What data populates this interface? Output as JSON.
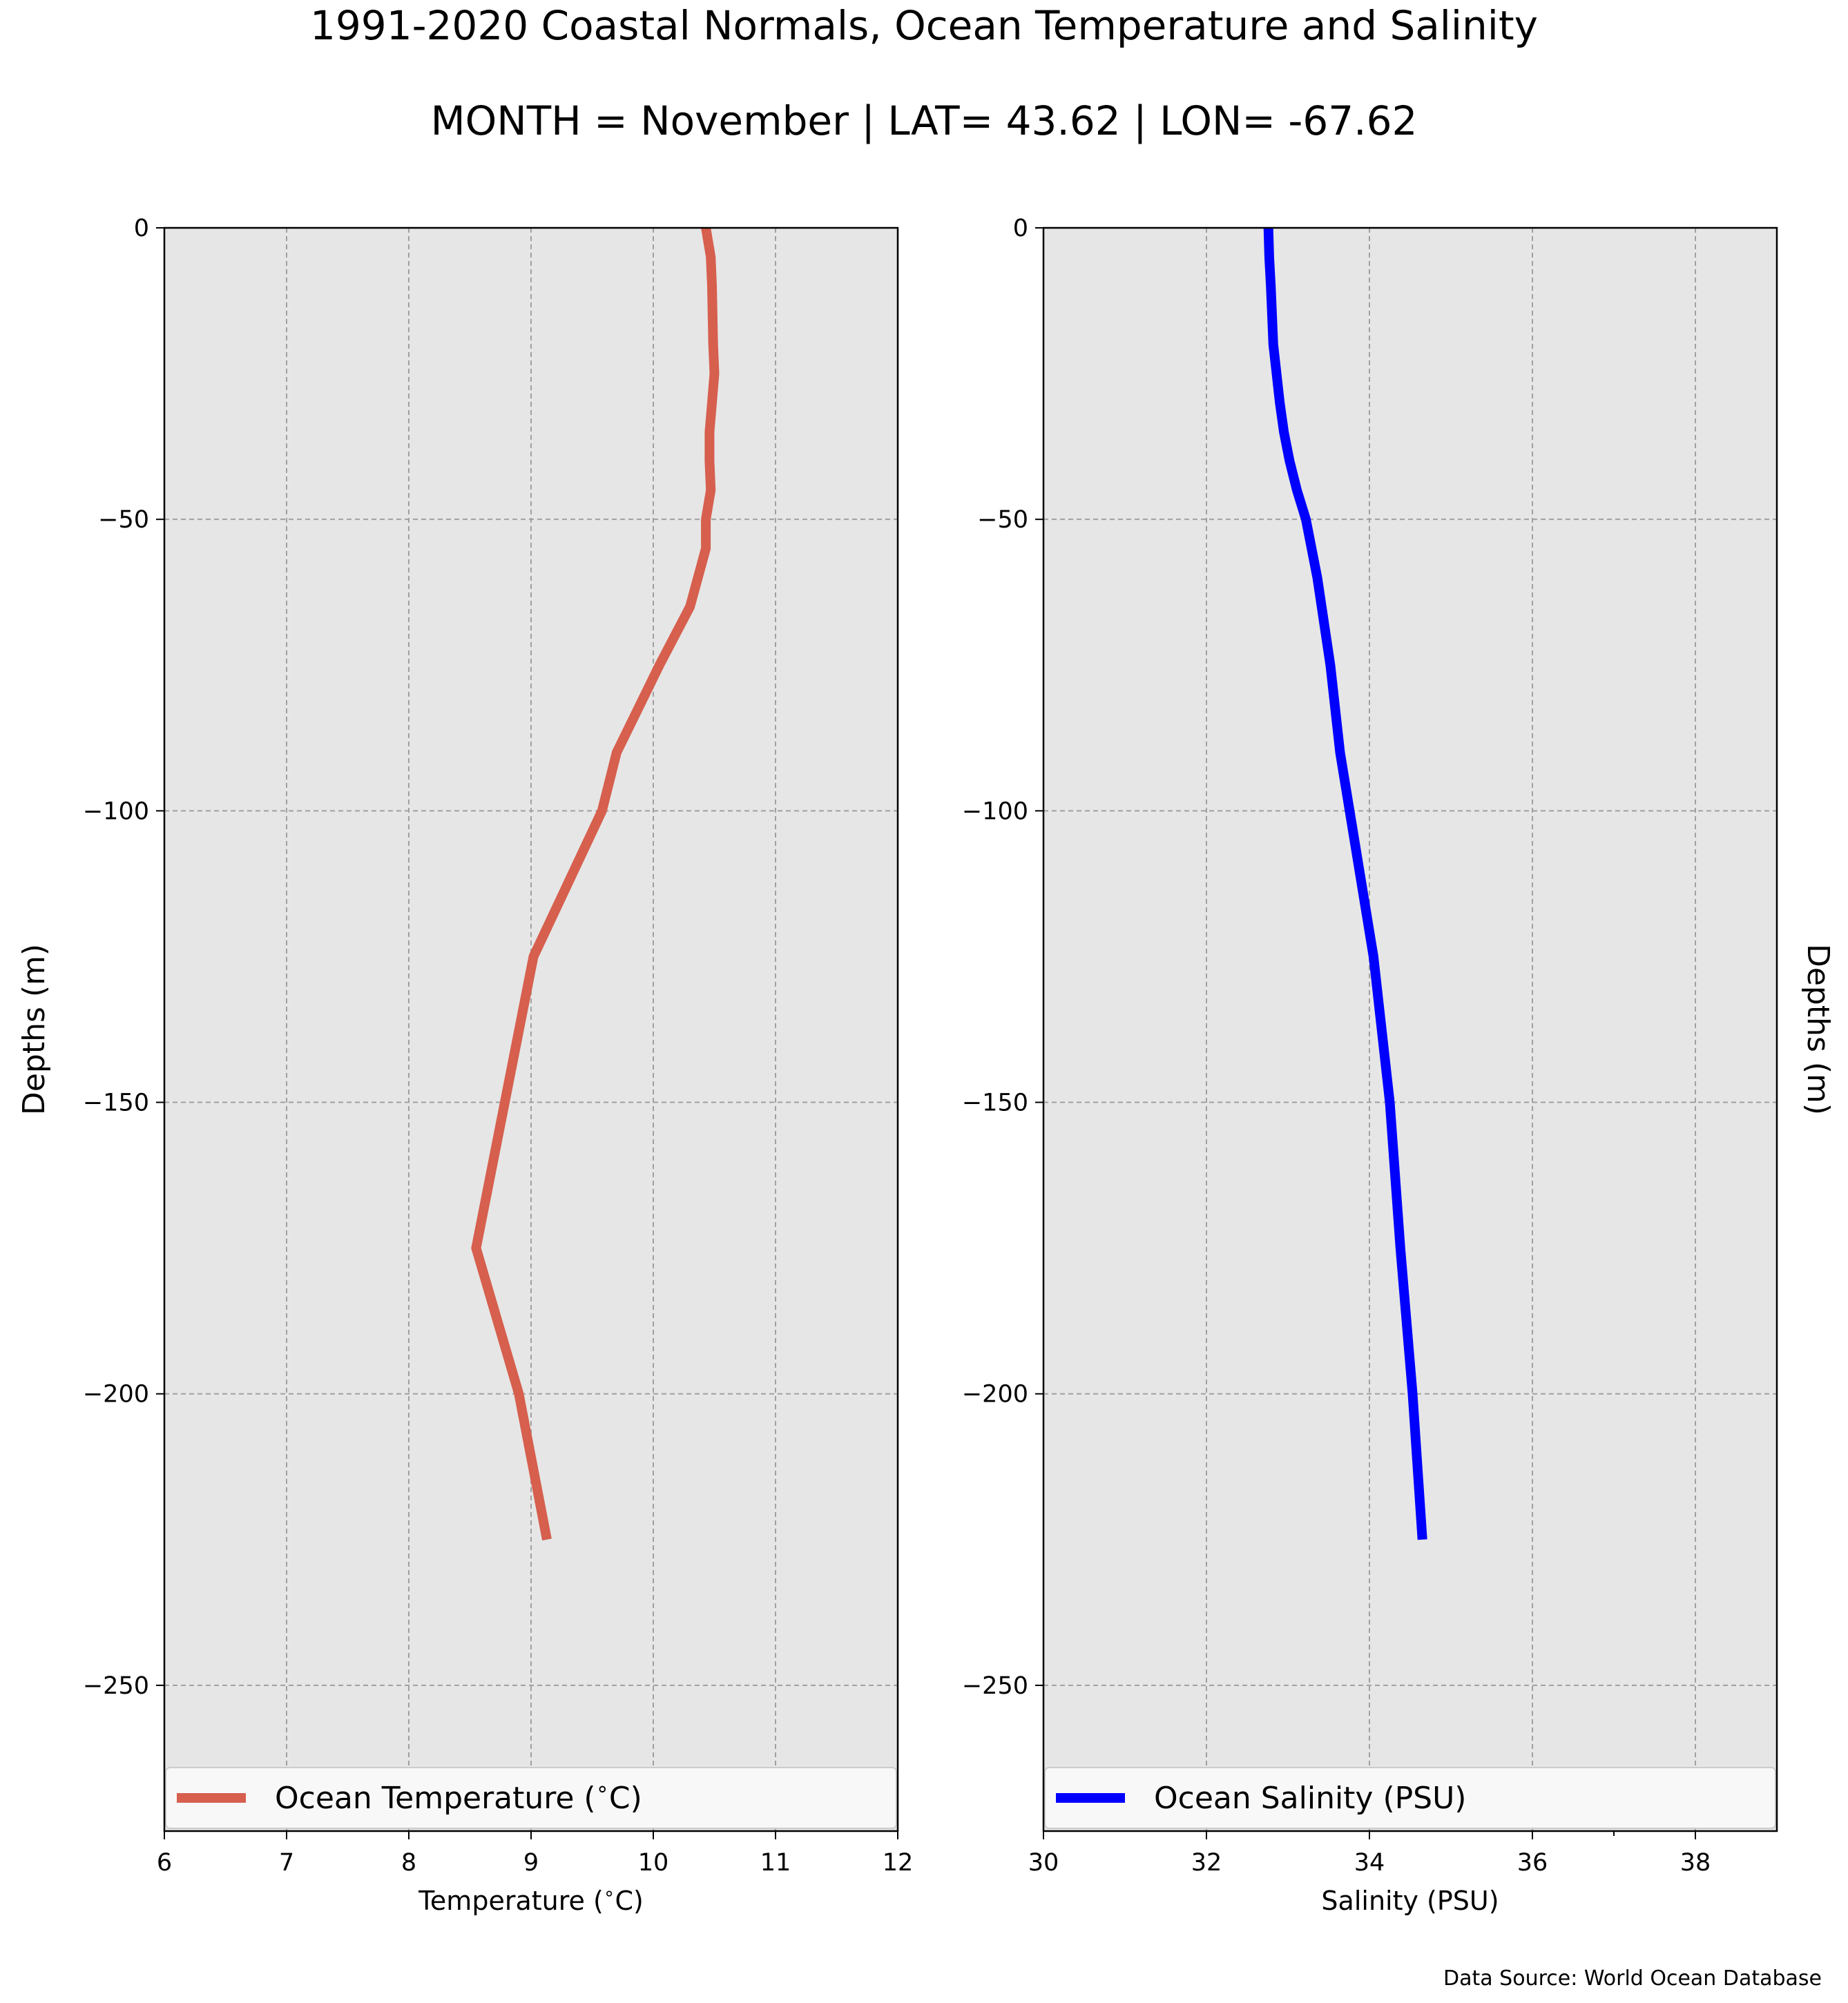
{
  "figure": {
    "title": "1991-2020 Coastal Normals, Ocean Temperature and Salinity",
    "subtitle": "MONTH = November | LAT= 43.62 | LON= -67.62",
    "source": "Data Source: World Ocean Database"
  },
  "colors": {
    "background": "#ffffff",
    "plot_bg": "#e6e6e6",
    "grid": "#a0a0a0",
    "temperature": "#d65f4e",
    "salinity": "#0000ff",
    "legend_bg": "#f8f8f8"
  },
  "chart_data": [
    {
      "type": "line",
      "xlabel": "Temperature ($^\\circ$C)",
      "ylabel": "Depths (m)",
      "xlim": [
        6,
        12
      ],
      "ylim": [
        -275,
        0
      ],
      "xticks": [
        "6",
        "7",
        "8",
        "9",
        "10",
        "11",
        "12"
      ],
      "yticks": [
        "0",
        "−50",
        "−100",
        "−150",
        "−200",
        "−250"
      ],
      "grid": true,
      "legend_position": "bottom",
      "series": [
        {
          "name": "Ocean Temperature ($^\\circ$C)",
          "x": [
            10.43,
            10.47,
            10.48,
            10.49,
            10.5,
            10.48,
            10.46,
            10.46,
            10.47,
            10.43,
            10.43,
            10.3,
            10.05,
            9.7,
            9.58,
            9.02,
            8.55,
            8.9,
            9.13
          ],
          "y": [
            0,
            -5,
            -10,
            -20,
            -25,
            -30,
            -35,
            -40,
            -45,
            -50,
            -55,
            -65,
            -75,
            -90,
            -100,
            -125,
            -175,
            -200,
            -225
          ]
        }
      ]
    },
    {
      "type": "line",
      "xlabel": "Salinity (PSU)",
      "ylabel": "Depths (m)",
      "xlim": [
        30,
        39
      ],
      "ylim": [
        -275,
        0
      ],
      "xticks": [
        "30",
        "32",
        "34",
        "36",
        "38"
      ],
      "yticks": [
        "0",
        "−50",
        "−100",
        "−150",
        "−200",
        "−250"
      ],
      "grid": true,
      "legend_position": "bottom",
      "series": [
        {
          "name": "Ocean Salinity (PSU)",
          "x": [
            32.76,
            32.77,
            32.79,
            32.82,
            32.86,
            32.9,
            32.95,
            33.02,
            33.11,
            33.22,
            33.36,
            33.52,
            33.64,
            34.05,
            34.25,
            34.38,
            34.53,
            34.65
          ],
          "y": [
            0,
            -5,
            -10,
            -20,
            -25,
            -30,
            -35,
            -40,
            -45,
            -50,
            -60,
            -75,
            -90,
            -125,
            -150,
            -175,
            -200,
            -225
          ]
        }
      ]
    }
  ]
}
